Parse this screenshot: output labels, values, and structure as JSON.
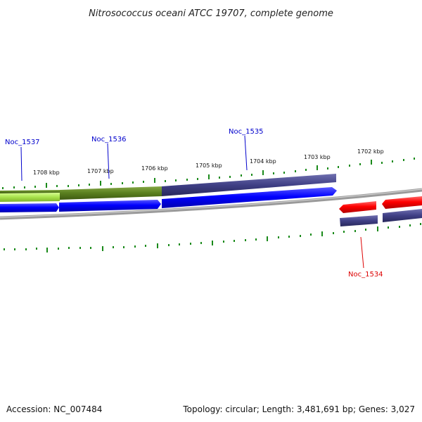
{
  "title": "Nitrosococcus oceani ATCC 19707, complete genome",
  "footer": {
    "accession": "Accession: NC_007484",
    "stats": "Topology: circular; Length: 3,481,691 bp; Genes: 3,027"
  },
  "scale_labels": [
    "1708 kbp",
    "1707 kbp",
    "1706 kbp",
    "1705 kbp",
    "1704 kbp",
    "1703 kbp",
    "1702 kbp"
  ],
  "genes": [
    {
      "name": "Noc_1537",
      "strand": "forward",
      "color": "#0000cc"
    },
    {
      "name": "Noc_1536",
      "strand": "forward",
      "color": "#0000cc"
    },
    {
      "name": "Noc_1535",
      "strand": "forward",
      "color": "#0000cc"
    },
    {
      "name": "Noc_1534",
      "strand": "reverse",
      "color": "#dd0000"
    }
  ],
  "colors": {
    "forward_cds": "#0000ff",
    "reverse_cds": "#ff0000",
    "cog_green_light": "#a6e04a",
    "cog_green_dark": "#5a7f1f",
    "cog_purple": "#3f3f85",
    "backbone": "#8c8c8c",
    "ticks": "#1a8a1a"
  }
}
